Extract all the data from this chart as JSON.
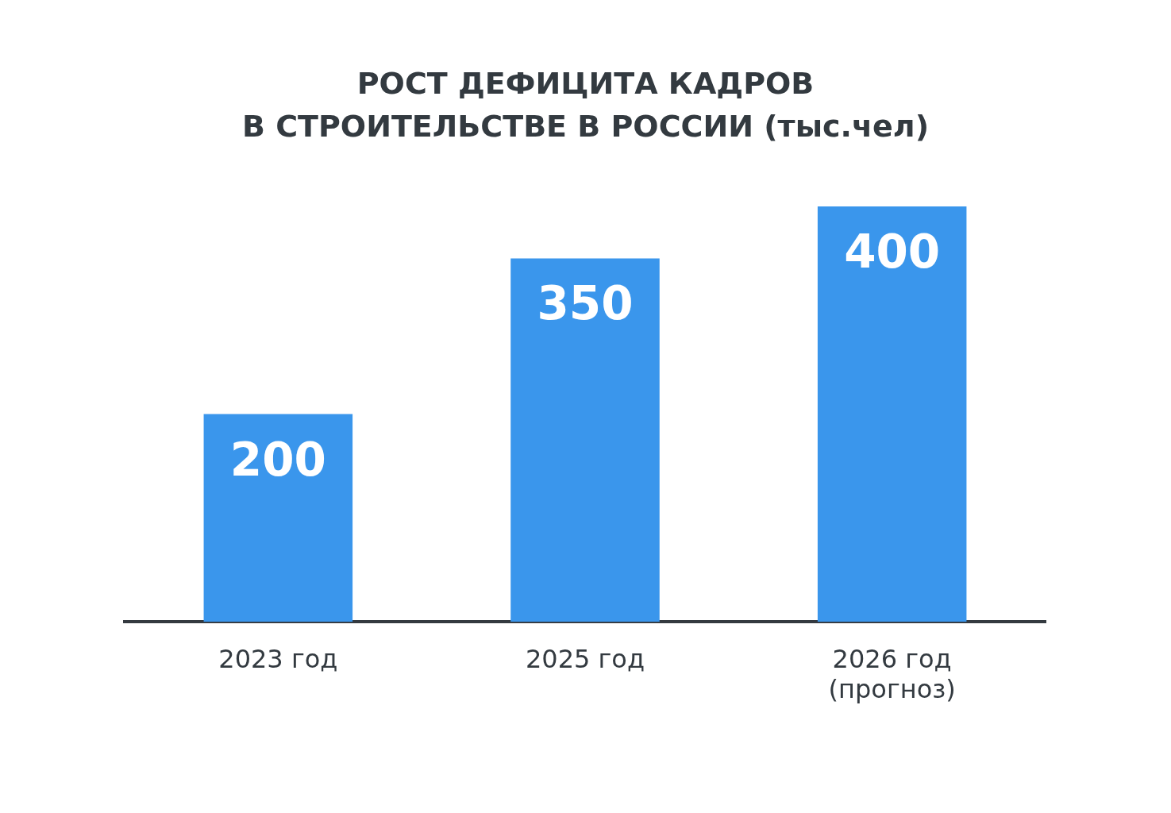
{
  "chart_data": {
    "type": "bar",
    "title": "РОСТ ДЕФИЦИТА КАДРОВ\nВ СТРОИТЕЛЬСТВЕ В РОССИИ (тыс.чел)",
    "categories": [
      "2023 год",
      "2025 год",
      "2026 год\n(прогноз)"
    ],
    "values": [
      200,
      350,
      400
    ],
    "color": "#3a96ec",
    "data_labels": true,
    "tick_labels": "x",
    "grid": false,
    "legend": false
  }
}
